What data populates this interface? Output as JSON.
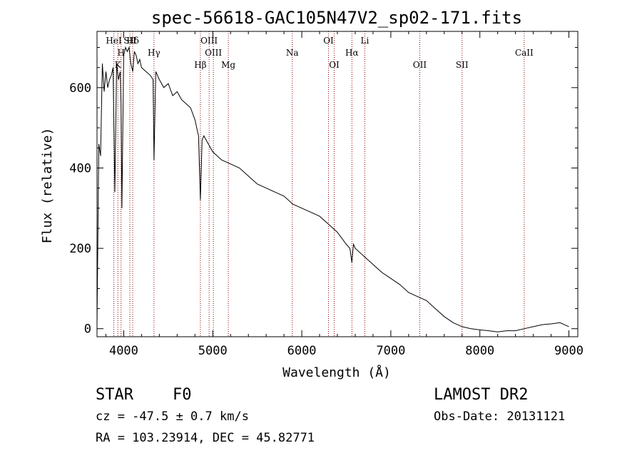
{
  "chart_data": {
    "type": "line",
    "title": "spec-56618-GAC105N47V2_sp02-171.fits",
    "xlabel": "Wavelength (Å)",
    "ylabel": "Flux (relative)",
    "xlim": [
      3700,
      9100
    ],
    "ylim": [
      -20,
      740
    ],
    "xticks": [
      4000,
      5000,
      6000,
      7000,
      8000,
      9000
    ],
    "yticks": [
      0,
      200,
      400,
      600
    ],
    "series": [
      {
        "x": [
          3700,
          3720,
          3740,
          3760,
          3780,
          3800,
          3820,
          3840,
          3860,
          3880,
          3900,
          3920,
          3940,
          3960,
          3970,
          3980,
          4000,
          4020,
          4040,
          4060,
          4080,
          4101,
          4120,
          4140,
          4160,
          4180,
          4200,
          4250,
          4300,
          4330,
          4340,
          4360,
          4400,
          4450,
          4500,
          4550,
          4600,
          4650,
          4700,
          4750,
          4800,
          4840,
          4861,
          4880,
          4900,
          4950,
          5000,
          5100,
          5200,
          5300,
          5400,
          5500,
          5600,
          5700,
          5800,
          5900,
          6000,
          6100,
          6200,
          6300,
          6400,
          6500,
          6540,
          6563,
          6580,
          6600,
          6700,
          6800,
          6900,
          7000,
          7100,
          7200,
          7300,
          7400,
          7500,
          7600,
          7700,
          7800,
          7900,
          8000,
          8100,
          8200,
          8300,
          8400,
          8500,
          8600,
          8700,
          8800,
          8900,
          9000
        ],
        "values": [
          10,
          460,
          430,
          660,
          590,
          640,
          600,
          620,
          630,
          650,
          340,
          660,
          620,
          640,
          560,
          300,
          680,
          700,
          690,
          700,
          660,
          640,
          690,
          680,
          660,
          670,
          650,
          640,
          630,
          620,
          420,
          640,
          620,
          600,
          610,
          580,
          590,
          570,
          560,
          550,
          520,
          480,
          320,
          470,
          480,
          460,
          440,
          420,
          410,
          400,
          380,
          360,
          350,
          340,
          330,
          310,
          300,
          290,
          280,
          260,
          240,
          210,
          200,
          165,
          210,
          200,
          180,
          160,
          140,
          125,
          110,
          90,
          80,
          70,
          50,
          30,
          15,
          5,
          0,
          -3,
          -5,
          -8,
          -5,
          -5,
          0,
          5,
          10,
          12,
          15,
          5
        ]
      }
    ],
    "annotations": [
      {
        "label": "Hγ",
        "x": 4340,
        "row": 2
      },
      {
        "label": "HeI",
        "x": 3889,
        "row": 1
      },
      {
        "label": "K",
        "x": 3934,
        "row": 3
      },
      {
        "label": "H",
        "x": 3970,
        "row": 2
      },
      {
        "label": "Hδ",
        "x": 4101,
        "row": 1
      },
      {
        "label": "SII",
        "x": 4069,
        "row": 1
      },
      {
        "label": "OIII",
        "x": 4959,
        "row": 1
      },
      {
        "label": "OIII",
        "x": 5007,
        "row": 2
      },
      {
        "label": "Hβ",
        "x": 4861,
        "row": 3
      },
      {
        "label": "Mg",
        "x": 5175,
        "row": 3
      },
      {
        "label": "Na",
        "x": 5893,
        "row": 2
      },
      {
        "label": "OI",
        "x": 6300,
        "row": 1
      },
      {
        "label": "OI",
        "x": 6364,
        "row": 3
      },
      {
        "label": "Hα",
        "x": 6563,
        "row": 2
      },
      {
        "label": "Li",
        "x": 6708,
        "row": 1
      },
      {
        "label": "OII",
        "x": 7325,
        "row": 3
      },
      {
        "label": "SII",
        "x": 7800,
        "row": 3
      },
      {
        "label": "CaII",
        "x": 8498,
        "row": 2
      }
    ],
    "grid": false,
    "colors": {
      "spectrum": "#000000",
      "line_markers": "#8b0000"
    }
  },
  "info": {
    "class": "STAR",
    "subclass": "F0",
    "survey": "LAMOST DR2",
    "cz": "cz = -47.5 ± 0.7 km/s",
    "obs_date": "Obs-Date: 20131121",
    "coords": "RA = 103.23914, DEC =  45.82771"
  }
}
